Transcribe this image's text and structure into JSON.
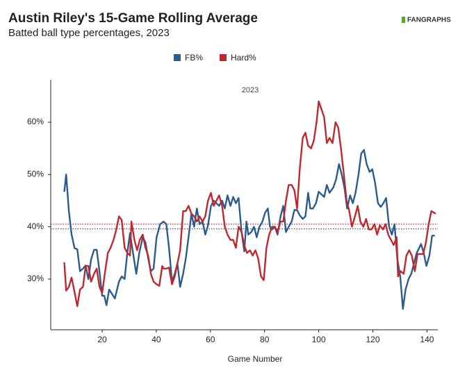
{
  "chart_data": {
    "type": "line",
    "title": "Austin Riley's 15-Game Rolling Average",
    "subtitle": "Batted ball type percentages, 2023",
    "logo": "FANGRAPHS",
    "annotation": "2023",
    "x_label": "Game Number",
    "xlim": [
      1,
      144
    ],
    "xticks": [
      20,
      40,
      60,
      80,
      100,
      120,
      140
    ],
    "ylim": [
      20.3,
      68.1
    ],
    "yticks": [
      {
        "value": 30,
        "label": "30%"
      },
      {
        "value": 40,
        "label": "40%"
      },
      {
        "value": 50,
        "label": "50%"
      },
      {
        "value": 60,
        "label": "60%"
      }
    ],
    "grid": false,
    "legend": "top",
    "series": [
      {
        "name": "FB%",
        "color": "#2b5b8c",
        "average": 39.6,
        "x": [
          6.0,
          6.7,
          7.7,
          8.7,
          9.8,
          10.8,
          11.8,
          12.9,
          13.9,
          14.9,
          15.9,
          17,
          18,
          19,
          20,
          20.8,
          21.6,
          22.6,
          24.7,
          26.2,
          27.2,
          28.3,
          29.3,
          30.3,
          31.4,
          32.6,
          33.7,
          35,
          36,
          37,
          38,
          39,
          40.1,
          41.4,
          42.7,
          43.7,
          44.7,
          45.8,
          46.8,
          47.8,
          48.8,
          49.9,
          50.9,
          51.9,
          53,
          54,
          55,
          56,
          57.1,
          58.1,
          59.1,
          60.2,
          61.2,
          62.2,
          63.2,
          64.3,
          65.3,
          66.3,
          67.4,
          68.4,
          69.4,
          70.4,
          71.5,
          72.5,
          73.3,
          74,
          75.1,
          76.1,
          77.1,
          78.1,
          79.2,
          80.2,
          81.2,
          82,
          82.8,
          83.8,
          84.8,
          85.9,
          86.9,
          87.9,
          88.9,
          90,
          91,
          92,
          93,
          94.1,
          95.1,
          96.1,
          96.9,
          97.9,
          99,
          100,
          101,
          102,
          103,
          104,
          105.4,
          106.4,
          107.5,
          108.5,
          109.5,
          110.5,
          111.6,
          112.6,
          113.6,
          114.7,
          115.7,
          116.7,
          117.7,
          118.8,
          119.8,
          120.8,
          121.9,
          122.9,
          123.9,
          124.9,
          126,
          127,
          128,
          129,
          130.1,
          131.1,
          132.1,
          133.2,
          134.2,
          135.2,
          136.2,
          137.8,
          138.8,
          139.8,
          140.9,
          141.9,
          142.9
        ],
        "values": [
          46.7,
          50,
          43,
          38.5,
          35.9,
          35.7,
          31.5,
          32,
          32.6,
          30,
          33.7,
          35.6,
          35.6,
          31.5,
          26.8,
          26.8,
          25,
          28,
          26.3,
          29.5,
          30.5,
          30,
          35,
          38.8,
          35,
          31,
          35,
          38,
          37,
          34,
          31.5,
          32,
          38,
          40.5,
          41,
          40.5,
          36,
          29.5,
          31,
          33,
          28.5,
          31,
          34,
          38,
          42.5,
          40,
          43.5,
          40.5,
          41,
          38.5,
          40.3,
          44,
          45,
          44.5,
          44,
          45,
          43.5,
          46,
          44,
          45.7,
          44.5,
          45.5,
          39,
          35.3,
          41,
          38.5,
          39,
          40,
          38,
          40,
          41,
          42.7,
          43.5,
          40,
          39.5,
          40,
          38.5,
          42,
          44,
          39,
          40,
          41,
          43.2,
          43.2,
          42.2,
          41.5,
          42,
          46.5,
          43.5,
          43.5,
          44.5,
          46.7,
          46.2,
          45.7,
          48,
          46.5,
          47.5,
          49,
          52,
          50,
          47.5,
          43.5,
          46,
          44.5,
          46.5,
          50,
          54,
          54.7,
          52,
          50.5,
          51,
          48.5,
          44.5,
          43.8,
          44.5,
          45.5,
          40,
          38.5,
          40.5,
          34,
          30.5,
          24.3,
          28,
          30,
          31,
          33,
          35,
          36.7,
          35,
          32.5,
          34.5,
          38.3,
          38.3
        ]
      },
      {
        "name": "Hard%",
        "color": "#c0272d",
        "average": 40.5,
        "x": [
          6,
          6.7,
          7.7,
          8.7,
          9.8,
          10.8,
          11.8,
          12.9,
          13.9,
          14.9,
          15.9,
          17,
          18,
          19,
          20,
          21.1,
          22.1,
          23.1,
          24.2,
          25.2,
          26.2,
          27.2,
          28.3,
          29.3,
          30.3,
          30.8,
          31.9,
          32.9,
          33.9,
          35,
          36,
          37,
          38,
          39,
          40.1,
          41.1,
          42.2,
          42.7,
          43.7,
          44.7,
          45.8,
          46.8,
          47.8,
          48.8,
          49.9,
          50.9,
          51.9,
          53,
          54,
          55,
          56,
          57.1,
          58.1,
          59.1,
          60.2,
          61.2,
          62.2,
          63.2,
          64.3,
          65.3,
          66.3,
          67.4,
          68.4,
          69.4,
          70.4,
          71.5,
          72.5,
          73.5,
          74.6,
          75.6,
          76.6,
          77.6,
          78.7,
          79.7,
          80.7,
          81.7,
          82.8,
          83.8,
          84.8,
          85.9,
          86.9,
          87.9,
          88.9,
          90,
          91,
          92,
          93,
          94.1,
          95.1,
          96.1,
          97.2,
          98.2,
          99.2,
          100,
          101,
          102,
          103,
          104,
          105.1,
          106.2,
          107.2,
          108.2,
          109.3,
          110.3,
          111.3,
          112.3,
          113.4,
          114.4,
          115.4,
          116.5,
          117.5,
          118.5,
          119.5,
          120.6,
          121.6,
          122.6,
          123.7,
          124.7,
          125.7,
          126.7,
          127.7,
          128.8,
          129.3,
          130.3,
          131.4,
          132.4,
          133.4,
          134.4,
          135.5,
          136.5,
          137.5,
          138.6,
          139.6,
          140.6,
          141.6,
          143.2
        ],
        "values": [
          33.2,
          27.8,
          28.5,
          30.3,
          27.5,
          24.8,
          28,
          28.5,
          32.5,
          32.5,
          29.5,
          31,
          32,
          28.5,
          27.3,
          31.5,
          35,
          36,
          37.5,
          39.5,
          42,
          41.3,
          36,
          35,
          34.5,
          41,
          37.5,
          35.5,
          37.5,
          38.5,
          36,
          34.5,
          31,
          29.5,
          29,
          28.7,
          32.5,
          32,
          32,
          32.2,
          29,
          30.5,
          33,
          35.5,
          43,
          43,
          44,
          42.5,
          42,
          41,
          42,
          41,
          42,
          45,
          46.5,
          44,
          45,
          46,
          44,
          40,
          38.5,
          37.5,
          37.5,
          36,
          40,
          39,
          36.5,
          35,
          35.5,
          34.5,
          35.5,
          34,
          30.5,
          29.8,
          36,
          38.5,
          40,
          40,
          39,
          41,
          41,
          45,
          48,
          48,
          47,
          43.5,
          51,
          57,
          58,
          55.5,
          55,
          56.5,
          60,
          64,
          62.5,
          61,
          56,
          57,
          56,
          60,
          59,
          55,
          50,
          45,
          43,
          40,
          42,
          44,
          41,
          40,
          41.5,
          39.5,
          39.5,
          40.5,
          38.5,
          40.3,
          39.5,
          40.5,
          38.5,
          37.5,
          36.5,
          38,
          30.5,
          31.5,
          31,
          34.5,
          35.5,
          34.5,
          31.5,
          34.8,
          34.8,
          34.8,
          37,
          40.5,
          43,
          42.5
        ]
      }
    ]
  }
}
